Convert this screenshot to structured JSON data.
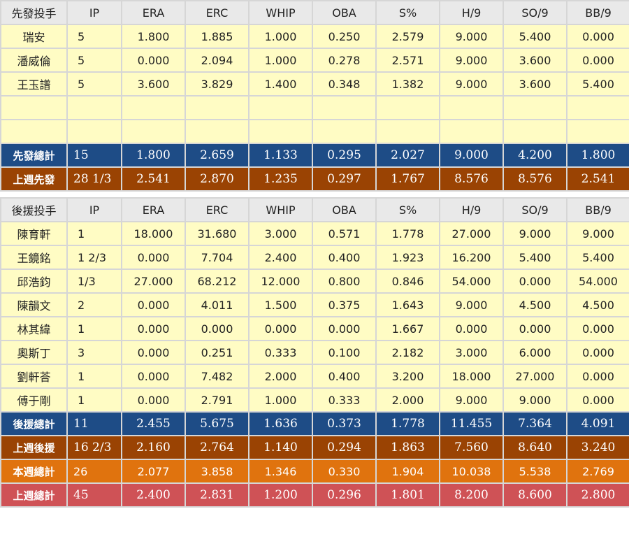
{
  "columns": [
    "IP",
    "ERA",
    "ERC",
    "WHIP",
    "OBA",
    "S%",
    "H/9",
    "SO/9",
    "BB/9"
  ],
  "starters": {
    "header": "先發投手",
    "rows": [
      {
        "name": "瑞安",
        "values": [
          "5",
          "1.800",
          "1.885",
          "1.000",
          "0.250",
          "2.579",
          "9.000",
          "5.400",
          "0.000"
        ]
      },
      {
        "name": "潘威倫",
        "values": [
          "5",
          "0.000",
          "2.094",
          "1.000",
          "0.278",
          "2.571",
          "9.000",
          "3.600",
          "0.000"
        ]
      },
      {
        "name": "王玉譜",
        "values": [
          "5",
          "3.600",
          "3.829",
          "1.400",
          "0.348",
          "1.382",
          "9.000",
          "3.600",
          "5.400"
        ]
      }
    ],
    "total": {
      "name": "先發總計",
      "values": [
        "15",
        "1.800",
        "2.659",
        "1.133",
        "0.295",
        "2.027",
        "9.000",
        "4.200",
        "1.800"
      ]
    },
    "last_week": {
      "name": "上週先發",
      "values": [
        "28 1/3",
        "2.541",
        "2.870",
        "1.235",
        "0.297",
        "1.767",
        "8.576",
        "8.576",
        "2.541"
      ]
    }
  },
  "relievers": {
    "header": "後援投手",
    "rows": [
      {
        "name": "陳育軒",
        "values": [
          "1",
          "18.000",
          "31.680",
          "3.000",
          "0.571",
          "1.778",
          "27.000",
          "9.000",
          "9.000"
        ]
      },
      {
        "name": "王鏡銘",
        "values": [
          "1 2/3",
          "0.000",
          "7.704",
          "2.400",
          "0.400",
          "1.923",
          "16.200",
          "5.400",
          "5.400"
        ]
      },
      {
        "name": "邱浩鈞",
        "values": [
          "1/3",
          "27.000",
          "68.212",
          "12.000",
          "0.800",
          "0.846",
          "54.000",
          "0.000",
          "54.000"
        ]
      },
      {
        "name": "陳韻文",
        "values": [
          "2",
          "0.000",
          "4.011",
          "1.500",
          "0.375",
          "1.643",
          "9.000",
          "4.500",
          "4.500"
        ]
      },
      {
        "name": "林其緯",
        "values": [
          "1",
          "0.000",
          "0.000",
          "0.000",
          "0.000",
          "1.667",
          "0.000",
          "0.000",
          "0.000"
        ]
      },
      {
        "name": "奧斯丁",
        "values": [
          "3",
          "0.000",
          "0.251",
          "0.333",
          "0.100",
          "2.182",
          "3.000",
          "6.000",
          "0.000"
        ]
      },
      {
        "name": "劉軒荅",
        "values": [
          "1",
          "0.000",
          "7.482",
          "2.000",
          "0.400",
          "3.200",
          "18.000",
          "27.000",
          "0.000"
        ]
      },
      {
        "name": "傅于剛",
        "values": [
          "1",
          "0.000",
          "2.791",
          "1.000",
          "0.333",
          "2.000",
          "9.000",
          "9.000",
          "0.000"
        ]
      }
    ],
    "total": {
      "name": "後援總計",
      "values": [
        "11",
        "2.455",
        "5.675",
        "1.636",
        "0.373",
        "1.778",
        "11.455",
        "7.364",
        "4.091"
      ]
    },
    "last_week": {
      "name": "上週後援",
      "values": [
        "16 2/3",
        "2.160",
        "2.764",
        "1.140",
        "0.294",
        "1.863",
        "7.560",
        "8.640",
        "3.240"
      ]
    }
  },
  "week_total": {
    "name": "本週總計",
    "values": [
      "26",
      "2.077",
      "3.858",
      "1.346",
      "0.330",
      "1.904",
      "10.038",
      "5.538",
      "2.769"
    ]
  },
  "last_week_total": {
    "name": "上週總計",
    "values": [
      "45",
      "2.400",
      "2.831",
      "1.200",
      "0.296",
      "1.801",
      "8.200",
      "8.600",
      "2.800"
    ]
  },
  "colors": {
    "data_row_bg": "#fffcc4",
    "header_bg": "#e9e9e9",
    "total_blue": "#1e4c86",
    "last_week_brown": "#9a4303",
    "week_total_orange": "#e0730e",
    "last_week_total_red": "#cf5256"
  }
}
